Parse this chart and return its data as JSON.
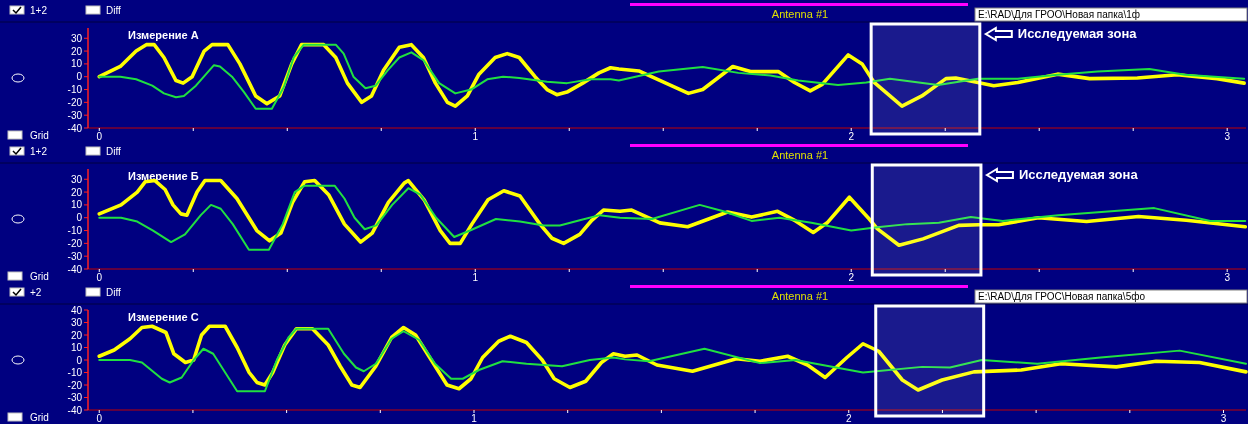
{
  "chart_data": [
    {
      "type": "line",
      "title": "Измерение А",
      "annotations": [
        "1+2",
        "Diff",
        "Grid",
        "Antenna #1",
        "E:\\RAD\\Для ГРОО\\Новая папка\\1ф"
      ],
      "xlim": [
        -0.03,
        3.05
      ],
      "xticks": [
        0,
        {
          "value": 0.25,
          "label": null
        },
        {
          "value": 0.5,
          "label": null
        },
        {
          "value": 0.75,
          "label": null
        },
        1,
        {
          "value": 1.25,
          "label": null
        },
        {
          "value": 1.5,
          "label": null
        },
        {
          "value": 1.75,
          "label": null
        },
        2,
        {
          "value": 2.25,
          "label": null
        },
        {
          "value": 2.5,
          "label": null
        },
        {
          "value": 2.75,
          "label": null
        },
        3
      ],
      "ylim": [
        -40,
        38
      ],
      "yticks": [
        -40,
        -30,
        -20,
        -10,
        0,
        10,
        20,
        30
      ],
      "grid": false,
      "bands": [
        {
          "axis": "x",
          "from": 2.053,
          "to": 2.342,
          "label": "Исследуемая зона",
          "color": "#ffffff"
        }
      ],
      "series": [
        {
          "color": "#ffff00",
          "x": [
            0,
            0.056,
            0.098,
            0.125,
            0.146,
            0.172,
            0.204,
            0.223,
            0.247,
            0.279,
            0.3,
            0.342,
            0.374,
            0.416,
            0.446,
            0.48,
            0.512,
            0.538,
            0.597,
            0.629,
            0.66,
            0.698,
            0.724,
            0.756,
            0.798,
            0.83,
            0.862,
            0.894,
            0.926,
            0.947,
            0.979,
            1.01,
            1.053,
            1.085,
            1.117,
            1.159,
            1.191,
            1.217,
            1.244,
            1.286,
            1.329,
            1.36,
            1.382,
            1.435,
            1.567,
            1.605,
            1.685,
            1.732,
            1.806,
            1.849,
            1.891,
            1.923,
            1.992,
            2.029,
            2.061,
            2.135,
            2.188,
            2.252,
            2.278,
            2.337,
            2.379,
            2.443,
            2.549,
            2.634,
            2.761,
            2.867,
            2.973,
            3.045
          ],
          "values": [
            0,
            8,
            20,
            25,
            25,
            15,
            -3,
            -5,
            0,
            20,
            25,
            25,
            10,
            -15,
            -21,
            -15,
            10,
            25,
            25,
            15,
            -5,
            -20,
            -15,
            5,
            23,
            25,
            15,
            -5,
            -20,
            -23,
            -15,
            2,
            15,
            18,
            15,
            0,
            -10,
            -14,
            -12,
            -5,
            3,
            7,
            6,
            4.5,
            -13,
            -10,
            8,
            4,
            4,
            -4.5,
            -11,
            -6,
            17,
            10,
            -4.5,
            -23,
            -15,
            -1.5,
            -1,
            -4.5,
            -7,
            -4.5,
            2,
            -1.5,
            -1,
            1.5,
            -1.5,
            -5
          ]
        },
        {
          "color": "#20e040",
          "x": [
            0,
            0.056,
            0.098,
            0.141,
            0.172,
            0.204,
            0.225,
            0.257,
            0.284,
            0.305,
            0.321,
            0.353,
            0.385,
            0.416,
            0.459,
            0.491,
            0.517,
            0.544,
            0.629,
            0.65,
            0.676,
            0.708,
            0.735,
            0.767,
            0.798,
            0.83,
            0.862,
            0.904,
            0.947,
            0.989,
            1.032,
            1.074,
            1.117,
            1.191,
            1.244,
            1.307,
            1.36,
            1.382,
            1.488,
            1.605,
            1.7,
            1.785,
            1.859,
            1.965,
            2.04,
            2.103,
            2.231,
            2.337,
            2.443,
            2.549,
            2.655,
            2.793,
            2.888,
            3.045
          ],
          "values": [
            0,
            0,
            -2,
            -7,
            -13,
            -16,
            -15,
            -7,
            2,
            9,
            8,
            0,
            -12,
            -25,
            -25,
            -8,
            15,
            25,
            25,
            18,
            0,
            -9,
            -7,
            5,
            15,
            19,
            13,
            -5,
            -13,
            -10,
            -2,
            0,
            -1,
            -4,
            -5,
            -2,
            -2,
            -3,
            4,
            7.5,
            3,
            1,
            -3,
            -6.5,
            -4.5,
            -1.5,
            -6.5,
            -1.5,
            -1.5,
            1.5,
            4,
            6,
            1.5,
            -1.5
          ]
        }
      ]
    },
    {
      "type": "line",
      "title": "Измерение Б",
      "annotations": [
        "1+2",
        "Diff",
        "Grid",
        "Antenna #1"
      ],
      "xlim": [
        -0.03,
        3.05
      ],
      "xticks": [
        0,
        {
          "value": 0.25,
          "label": null
        },
        {
          "value": 0.5,
          "label": null
        },
        {
          "value": 0.75,
          "label": null
        },
        1,
        {
          "value": 1.25,
          "label": null
        },
        {
          "value": 1.5,
          "label": null
        },
        {
          "value": 1.75,
          "label": null
        },
        2,
        {
          "value": 2.25,
          "label": null
        },
        {
          "value": 2.5,
          "label": null
        },
        {
          "value": 2.75,
          "label": null
        },
        3
      ],
      "ylim": [
        -40,
        38
      ],
      "yticks": [
        -40,
        -30,
        -20,
        -10,
        0,
        10,
        20,
        30
      ],
      "grid": false,
      "bands": [
        {
          "axis": "x",
          "from": 2.056,
          "to": 2.345,
          "label": "Исследуемая зона",
          "color": "#ffffff"
        }
      ],
      "series": [
        {
          "color": "#ffff00",
          "x": [
            0,
            0.058,
            0.101,
            0.122,
            0.148,
            0.175,
            0.196,
            0.217,
            0.233,
            0.239,
            0.26,
            0.281,
            0.323,
            0.366,
            0.419,
            0.453,
            0.483,
            0.514,
            0.546,
            0.573,
            0.61,
            0.652,
            0.695,
            0.726,
            0.769,
            0.811,
            0.822,
            0.864,
            0.907,
            0.933,
            0.96,
            0.991,
            1.034,
            1.076,
            1.119,
            1.172,
            1.204,
            1.235,
            1.278,
            1.31,
            1.341,
            1.385,
            1.416,
            1.491,
            1.565,
            1.671,
            1.735,
            1.804,
            1.852,
            1.899,
            1.936,
            1.995,
            2.048,
            2.069,
            2.127,
            2.191,
            2.286,
            2.339,
            2.392,
            2.498,
            2.626,
            2.764,
            2.891,
            3.048
          ],
          "values": [
            3,
            10,
            20,
            28,
            29,
            22,
            10,
            3,
            2,
            6,
            20,
            29,
            29,
            15,
            -10,
            -18,
            -12,
            12,
            28,
            29,
            18,
            -5,
            -19,
            -12,
            12,
            27,
            29,
            14,
            -10,
            -20,
            -20,
            -5,
            14,
            21,
            17,
            -5,
            -16,
            -20,
            -13,
            -2,
            6,
            5,
            6,
            -4,
            -7,
            4.5,
            0.5,
            5,
            -2.5,
            -11.5,
            -4,
            16,
            -1,
            -8.5,
            -21.5,
            -16.5,
            -6,
            -5.5,
            -5.5,
            0,
            -3,
            1,
            -2,
            -7
          ]
        },
        {
          "color": "#20e040",
          "x": [
            0,
            0.058,
            0.101,
            0.143,
            0.191,
            0.228,
            0.27,
            0.297,
            0.323,
            0.355,
            0.398,
            0.451,
            0.488,
            0.52,
            0.546,
            0.626,
            0.652,
            0.679,
            0.706,
            0.737,
            0.779,
            0.822,
            0.854,
            0.896,
            0.944,
            0.986,
            1.055,
            1.119,
            1.182,
            1.225,
            1.278,
            1.331,
            1.385,
            1.47,
            1.597,
            1.66,
            1.735,
            1.809,
            1.894,
            2.0,
            2.069,
            2.149,
            2.233,
            2.318,
            2.403,
            2.551,
            2.806,
            2.955,
            3.048
          ],
          "values": [
            0,
            0,
            -3,
            -10,
            -19,
            -13,
            2,
            10,
            7,
            -5,
            -25,
            -25,
            -5,
            20,
            25,
            25,
            15,
            0,
            -9,
            -6,
            10,
            23,
            18,
            0,
            -15,
            -10,
            -1,
            -3,
            -6,
            -6,
            -2,
            2,
            0,
            -1,
            10,
            5,
            -2.5,
            0,
            -4,
            -10,
            -7.5,
            -5,
            -4,
            0.5,
            -2.5,
            2,
            7.5,
            -2.5,
            -2.5
          ]
        }
      ]
    },
    {
      "type": "line",
      "title": "Измерение С",
      "annotations": [
        "+2",
        "Diff",
        "Grid",
        "Antenna #1",
        "E:\\RAD\\Для ГРОС\\Новая папка\\5фо"
      ],
      "xlim": [
        -0.03,
        3.06
      ],
      "xticks": [
        0,
        {
          "value": 0.25,
          "label": null
        },
        {
          "value": 0.5,
          "label": null
        },
        {
          "value": 0.75,
          "label": null
        },
        1,
        {
          "value": 1.25,
          "label": null
        },
        {
          "value": 1.5,
          "label": null
        },
        {
          "value": 1.75,
          "label": null
        },
        2,
        {
          "value": 2.25,
          "label": null
        },
        {
          "value": 2.5,
          "label": null
        },
        {
          "value": 2.75,
          "label": null
        },
        3
      ],
      "ylim": [
        -40,
        40
      ],
      "yticks": [
        -40,
        -30,
        -20,
        -10,
        0,
        10,
        20,
        30,
        40
      ],
      "grid": false,
      "bands": [
        {
          "axis": "x",
          "from": 2.072,
          "to": 2.36,
          "color": "#ffffff"
        }
      ],
      "series": [
        {
          "color": "#ffff00",
          "x": [
            0,
            0.04,
            0.082,
            0.114,
            0.141,
            0.178,
            0.199,
            0.23,
            0.252,
            0.273,
            0.294,
            0.336,
            0.368,
            0.4,
            0.421,
            0.442,
            0.463,
            0.495,
            0.526,
            0.569,
            0.611,
            0.643,
            0.674,
            0.696,
            0.738,
            0.78,
            0.812,
            0.844,
            0.886,
            0.928,
            0.96,
            0.992,
            1.023,
            1.066,
            1.097,
            1.14,
            1.182,
            1.214,
            1.256,
            1.298,
            1.34,
            1.372,
            1.403,
            1.435,
            1.488,
            1.583,
            1.7,
            1.763,
            1.837,
            1.89,
            1.937,
            1.995,
            2.038,
            2.08,
            2.143,
            2.185,
            2.249,
            2.334,
            2.46,
            2.566,
            2.714,
            2.82,
            2.936,
            3.06
          ],
          "values": [
            3,
            8,
            17,
            26,
            27,
            22,
            5,
            -2,
            0,
            20,
            27,
            27,
            10,
            -10,
            -18,
            -20,
            -10,
            12,
            25,
            25,
            12,
            -5,
            -20,
            -22,
            -5,
            18,
            26,
            20,
            0,
            -20,
            -23,
            -15,
            2,
            15,
            19,
            14,
            0,
            -15,
            -22,
            -17,
            -2,
            5,
            3,
            4,
            -4,
            -9,
            1,
            -1,
            3,
            -4,
            -14,
            2,
            13,
            7,
            -16,
            -24,
            -16,
            -9.5,
            -8,
            -3,
            -5.5,
            -1,
            -2,
            -9.5
          ]
        },
        {
          "color": "#20e040",
          "x": [
            0,
            0.082,
            0.114,
            0.167,
            0.188,
            0.22,
            0.252,
            0.278,
            0.304,
            0.336,
            0.368,
            0.442,
            0.474,
            0.505,
            0.526,
            0.611,
            0.653,
            0.685,
            0.706,
            0.738,
            0.78,
            0.812,
            0.854,
            0.896,
            0.939,
            0.97,
            1.013,
            1.076,
            1.14,
            1.235,
            1.309,
            1.372,
            1.403,
            1.467,
            1.615,
            1.763,
            1.858,
            2.038,
            2.196,
            2.27,
            2.355,
            2.503,
            2.672,
            2.883,
            3.06
          ],
          "values": [
            0,
            0,
            -2,
            -15,
            -18,
            -14,
            0,
            9,
            5,
            -10,
            -25,
            -25,
            0,
            18,
            25,
            25,
            5,
            -6,
            -9,
            -3,
            17,
            23,
            16,
            -3,
            -15,
            -15,
            -8,
            -1,
            -3,
            -5,
            0,
            2,
            0.5,
            -1,
            9,
            -2.5,
            0,
            -10,
            -5.5,
            -6,
            0,
            -3,
            2,
            7.5,
            -3
          ]
        }
      ]
    }
  ]
}
